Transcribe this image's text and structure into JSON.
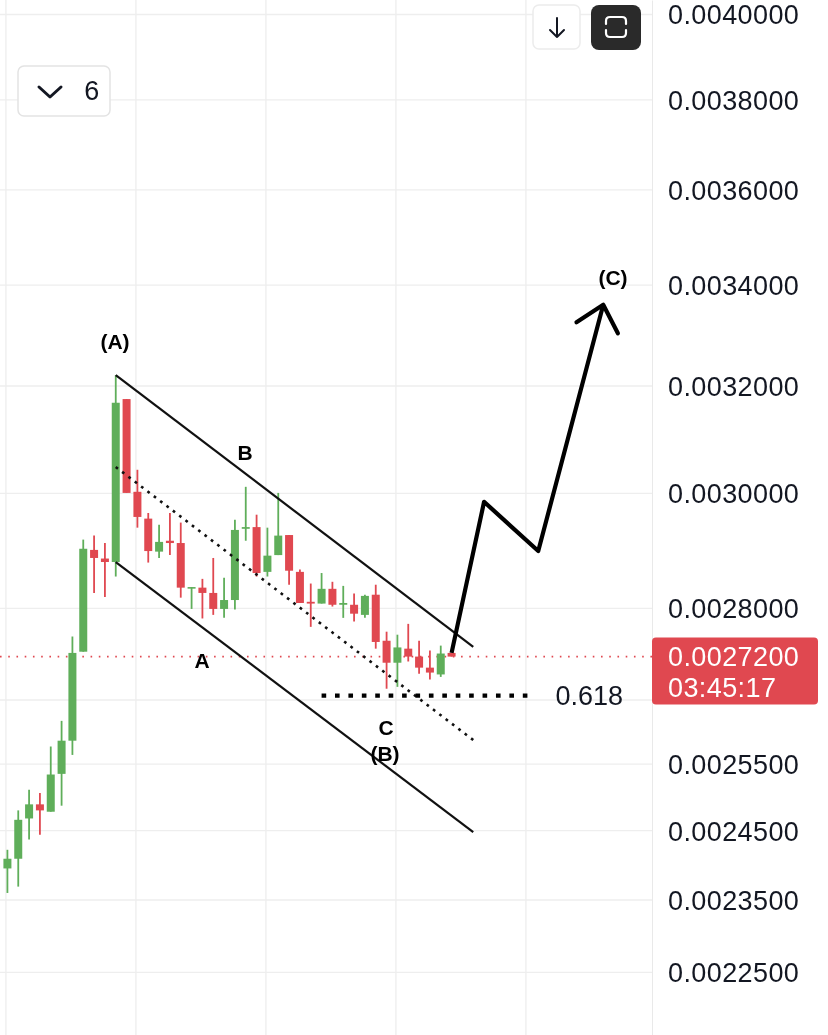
{
  "chart_data": {
    "type": "candlestick",
    "categories": [
      null,
      null,
      null,
      null,
      null,
      null,
      null,
      null,
      null,
      null,
      null,
      null,
      null,
      null,
      null,
      null,
      null,
      null,
      null,
      null,
      null,
      null,
      null,
      null,
      null,
      null,
      null,
      null,
      null,
      null,
      null,
      null,
      null,
      null,
      null,
      null,
      null,
      null,
      null,
      null,
      null,
      null,
      null,
      null,
      null,
      null,
      null,
      null,
      null,
      null,
      null,
      null,
      null,
      null,
      null,
      null,
      null,
      null,
      null,
      null
    ],
    "ohlc": [
      [
        0.002395,
        0.002422,
        0.00236,
        0.002409
      ],
      [
        0.002409,
        0.00248,
        0.002369,
        0.002466
      ],
      [
        0.002468,
        0.002511,
        0.002437,
        0.002489
      ],
      [
        0.002489,
        0.002506,
        0.002444,
        0.00248
      ],
      [
        0.002478,
        0.002577,
        0.002478,
        0.002534
      ],
      [
        0.002535,
        0.002617,
        0.002487,
        0.002586
      ],
      [
        0.002586,
        0.002753,
        0.002564,
        0.002726
      ],
      [
        0.002728,
        0.002918,
        0.002728,
        0.002902
      ],
      [
        0.0029,
        0.002925,
        0.002826,
        0.002886
      ],
      [
        0.002885,
        0.002912,
        0.002819,
        0.002879
      ],
      [
        0.002879,
        0.003221,
        0.002854,
        0.003168
      ],
      [
        0.003175,
        0.003175,
        0.003001,
        0.003001
      ],
      [
        0.003003,
        0.003043,
        0.002939,
        0.002958
      ],
      [
        0.002955,
        0.002965,
        0.002878,
        0.002898
      ],
      [
        0.002897,
        0.002944,
        0.002886,
        0.002914
      ],
      [
        0.002916,
        0.002965,
        0.002891,
        0.002912
      ],
      [
        0.002912,
        0.002948,
        0.002818,
        0.002835
      ],
      [
        0.002835,
        0.002836,
        0.002799,
        0.002836
      ],
      [
        0.002835,
        0.00285,
        0.002783,
        0.002826
      ],
      [
        0.002826,
        0.002886,
        0.002789,
        0.002799
      ],
      [
        0.002799,
        0.002852,
        0.002784,
        0.002814
      ],
      [
        0.002814,
        0.002953,
        0.002798,
        0.002935
      ],
      [
        0.002937,
        0.003012,
        0.002916,
        0.00294
      ],
      [
        0.00294,
        0.002962,
        0.002854,
        0.00286
      ],
      [
        0.002862,
        0.002939,
        0.002854,
        0.00289
      ],
      [
        0.002891,
        0.003001,
        0.002891,
        0.002925
      ],
      [
        0.002926,
        0.002926,
        0.00284,
        0.002864
      ],
      [
        0.002862,
        0.002866,
        0.002809,
        0.002809
      ],
      [
        0.002811,
        0.002842,
        0.002769,
        0.002808
      ],
      [
        0.002808,
        0.00286,
        0.002808,
        0.002833
      ],
      [
        0.002833,
        0.002845,
        0.002803,
        0.002806
      ],
      [
        0.002806,
        0.002838,
        0.002784,
        0.002809
      ],
      [
        0.002806,
        0.002825,
        0.002778,
        0.002791
      ],
      [
        0.002789,
        0.002823,
        0.002784,
        0.002821
      ],
      [
        0.002823,
        0.00284,
        0.002733,
        0.002744
      ],
      [
        0.002746,
        0.002761,
        0.002668,
        0.00271
      ],
      [
        0.00271,
        0.002756,
        0.002671,
        0.002735
      ],
      [
        0.002733,
        0.002774,
        0.002712,
        0.00272
      ],
      [
        0.00272,
        0.002746,
        0.002692,
        0.002702
      ],
      [
        0.002702,
        0.00273,
        0.002683,
        0.002694
      ],
      [
        0.002691,
        0.002738,
        0.002687,
        0.002725
      ],
      [
        0.002726,
        0.002726,
        0.00272,
        0.00272
      ],
      null,
      null,
      null,
      null,
      null,
      null,
      null,
      null,
      null,
      null,
      null,
      null,
      null,
      null,
      null,
      null,
      null,
      null
    ],
    "colors": [
      "#5fae5a",
      "#5fae5a",
      "#5fae5a",
      "#e04850",
      "#5fae5a",
      "#5fae5a",
      "#5fae5a",
      "#5fae5a",
      "#e04850",
      "#e04850",
      "#5fae5a",
      "#e04850",
      "#e04850",
      "#e04850",
      "#5fae5a",
      "#e04850",
      "#e04850",
      "#5fae5a",
      "#e04850",
      "#e04850",
      "#5fae5a",
      "#5fae5a",
      "#5fae5a",
      "#e04850",
      "#5fae5a",
      "#5fae5a",
      "#e04850",
      "#e04850",
      "#e04850",
      "#5fae5a",
      "#e04850",
      "#5fae5a",
      "#e04850",
      "#5fae5a",
      "#e04850",
      "#e04850",
      "#5fae5a",
      "#e04850",
      "#e04850",
      "#e04850",
      "#5fae5a",
      "#e04850",
      null,
      null,
      null,
      null,
      null,
      null,
      null,
      null,
      null,
      null,
      null,
      null,
      null,
      null,
      null,
      null,
      null,
      null
    ],
    "series": [
      {
        "type": "line",
        "color": "#111111",
        "line_style": "solid",
        "values": [
          null,
          null,
          null,
          null,
          null,
          null,
          null,
          null,
          null,
          null,
          0.003221,
          null,
          null,
          null,
          null,
          null,
          null,
          null,
          null,
          null,
          null,
          null,
          null,
          null,
          null,
          null,
          null,
          null,
          null,
          null,
          null,
          null,
          null,
          null,
          null,
          null,
          null,
          null,
          null,
          null,
          null,
          null,
          null,
          0.002736,
          null,
          null,
          null,
          null,
          null,
          null,
          null,
          null,
          null,
          null,
          null,
          null,
          null,
          null,
          null,
          null
        ]
      },
      {
        "type": "line",
        "color": "#111111",
        "line_style": "dotted",
        "values": [
          null,
          null,
          null,
          null,
          null,
          null,
          null,
          null,
          null,
          null,
          0.003048,
          null,
          null,
          null,
          null,
          null,
          null,
          null,
          null,
          null,
          null,
          null,
          null,
          null,
          null,
          null,
          null,
          null,
          null,
          null,
          null,
          null,
          null,
          null,
          null,
          null,
          null,
          null,
          null,
          null,
          null,
          null,
          null,
          0.002587,
          null,
          null,
          null,
          null,
          null,
          null,
          null,
          null,
          null,
          null,
          null,
          null,
          null,
          null,
          null,
          null
        ]
      },
      {
        "type": "line",
        "color": "#111111",
        "line_style": "solid",
        "values": [
          null,
          null,
          null,
          null,
          null,
          null,
          null,
          null,
          null,
          null,
          0.002879,
          null,
          null,
          null,
          null,
          null,
          null,
          null,
          null,
          null,
          null,
          null,
          null,
          null,
          null,
          null,
          null,
          null,
          null,
          null,
          null,
          null,
          null,
          null,
          null,
          null,
          null,
          null,
          null,
          null,
          null,
          null,
          null,
          0.002448,
          null,
          null,
          null,
          null,
          null,
          null,
          null,
          null,
          null,
          null,
          null,
          null,
          null,
          null,
          null,
          null
        ]
      },
      {
        "type": "line",
        "name": "0.618",
        "color": "#000000",
        "line_style": "dotted",
        "values": [
          null,
          null,
          null,
          null,
          null,
          null,
          null,
          null,
          null,
          null,
          null,
          null,
          null,
          null,
          null,
          null,
          null,
          null,
          null,
          null,
          null,
          null,
          null,
          null,
          null,
          null,
          null,
          null,
          null,
          0.002657,
          0.002657,
          0.002657,
          0.002657,
          0.002657,
          0.002657,
          0.002657,
          0.002657,
          0.002657,
          0.002657,
          0.002657,
          0.002657,
          0.002657,
          0.002657,
          0.002657,
          0.002657,
          0.002657,
          0.002657,
          0.002657,
          0.002657,
          null,
          null,
          null,
          null,
          null,
          null,
          null,
          null,
          null,
          null,
          null
        ]
      },
      {
        "type": "line",
        "color": "#000000",
        "line_style": "solid",
        "values": [
          null,
          null,
          null,
          null,
          null,
          null,
          null,
          null,
          null,
          null,
          null,
          null,
          null,
          null,
          null,
          null,
          null,
          null,
          null,
          null,
          null,
          null,
          null,
          null,
          null,
          null,
          null,
          null,
          null,
          null,
          null,
          null,
          null,
          null,
          null,
          null,
          null,
          null,
          null,
          null,
          null,
          0.002726,
          null,
          null,
          0.002985,
          null,
          null,
          null,
          null,
          0.002898,
          null,
          null,
          null,
          null,
          null,
          0.00336,
          null,
          null,
          null,
          null
        ]
      }
    ],
    "ylim": [
      0.002167,
      0.004035
    ],
    "yticks": [
      {
        "value": 0.004,
        "label": "0.0040000"
      },
      {
        "value": 0.0038,
        "label": "0.0038000"
      },
      {
        "value": 0.0036,
        "label": "0.0036000"
      },
      {
        "value": 0.0034,
        "label": "0.0034000"
      },
      {
        "value": 0.0032,
        "label": "0.0032000"
      },
      {
        "value": 0.003,
        "label": "0.0030000"
      },
      {
        "value": 0.0028,
        "label": "0.0028000"
      },
      {
        "value": 0.00265,
        "label": null
      },
      {
        "value": 0.00255,
        "label": "0.0025500"
      },
      {
        "value": 0.00245,
        "label": "0.0024500"
      },
      {
        "value": 0.00235,
        "label": "0.0023500"
      },
      {
        "value": 0.00225,
        "label": "0.0022500"
      }
    ],
    "log": "y",
    "grid": true,
    "tick_labels": "y",
    "ref_lines": [
      {
        "axis": "y",
        "value": 0.00272,
        "label": "0.0027200",
        "color": "#e04850",
        "line_style": "dotted"
      }
    ],
    "annotations": [
      "(A)",
      "B",
      "A",
      "C",
      "(B)",
      "(C)",
      "03:45:17",
      "6"
    ]
  }
}
